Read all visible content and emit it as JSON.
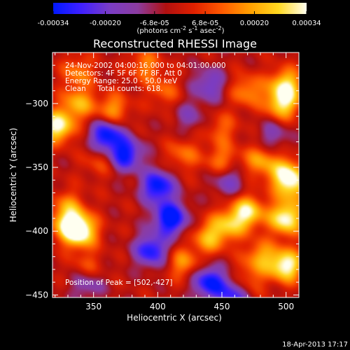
{
  "colorbar": {
    "ticks": [
      "-0.00034",
      "-0.00020",
      "-6.8e-05",
      "6.8e-05",
      "0.00020",
      "0.00034"
    ],
    "tick_values": [
      -0.00034,
      -0.0002,
      -6.8e-05,
      6.8e-05,
      0.0002,
      0.00034
    ],
    "range": [
      -0.00034,
      0.00034
    ],
    "colors": [
      "#0018ff",
      "#4020ff",
      "#7a3cc6",
      "#8c3ca0",
      "#b01010",
      "#e02000",
      "#ff5a00",
      "#ffa000",
      "#ffd820",
      "#fffff0"
    ]
  },
  "units": {
    "prefix": "(photons cm",
    "exp1": "-2",
    "mid": " s",
    "exp2": "-1",
    "mid2": " asec",
    "exp3": "-2",
    "suffix": ")"
  },
  "title": "Reconstructed RHESSI Image",
  "info": {
    "line1": "24-Nov-2002 04:00:16.000 to 04:01:00.000",
    "line2": "Detectors: 4F 5F 6F 7F 8F, Att 0",
    "line3": "Energy Range: 25.0 - 50.0 keV",
    "line4": "Clean     Total counts: 618."
  },
  "peak_label": "Position of Peak = [502,-427]",
  "footer_date": "18-Apr-2013 17:17",
  "chart_data": {
    "type": "heatmap",
    "title": "Reconstructed RHESSI Image",
    "xlabel": "Heliocentric X (arcsec)",
    "ylabel": "Heliocentric Y (arcsec)",
    "xlim": [
      318,
      510
    ],
    "ylim": [
      -452,
      -260
    ],
    "x_ticks": [
      350,
      400,
      450,
      500
    ],
    "y_ticks": [
      -300,
      -350,
      -400,
      -450
    ],
    "x_tick_labels": [
      "350",
      "400",
      "450",
      "500"
    ],
    "y_tick_labels": [
      "−300",
      "−350",
      "−400",
      "−450"
    ],
    "peak": [
      502,
      -427
    ],
    "features": [
      {
        "x": 340,
        "y": -400,
        "v": 1.0
      },
      {
        "x": 330,
        "y": -395,
        "v": 0.7
      },
      {
        "x": 322,
        "y": -318,
        "v": 0.95
      },
      {
        "x": 338,
        "y": -300,
        "v": 0.6
      },
      {
        "x": 365,
        "y": -305,
        "v": 0.55
      },
      {
        "x": 338,
        "y": -275,
        "v": 0.45
      },
      {
        "x": 390,
        "y": -270,
        "v": 0.45
      },
      {
        "x": 405,
        "y": -290,
        "v": 0.35
      },
      {
        "x": 470,
        "y": -290,
        "v": 0.5
      },
      {
        "x": 500,
        "y": -285,
        "v": 0.75
      },
      {
        "x": 497,
        "y": -300,
        "v": 0.8
      },
      {
        "x": 450,
        "y": -320,
        "v": 0.35
      },
      {
        "x": 420,
        "y": -340,
        "v": 0.4
      },
      {
        "x": 450,
        "y": -345,
        "v": 0.45
      },
      {
        "x": 480,
        "y": -345,
        "v": 0.55
      },
      {
        "x": 500,
        "y": -355,
        "v": 0.75
      },
      {
        "x": 505,
        "y": -365,
        "v": 0.6
      },
      {
        "x": 470,
        "y": -385,
        "v": 0.85
      },
      {
        "x": 500,
        "y": -390,
        "v": 1.0
      },
      {
        "x": 455,
        "y": -395,
        "v": 0.6
      },
      {
        "x": 440,
        "y": -405,
        "v": 0.6
      },
      {
        "x": 480,
        "y": -420,
        "v": 0.55
      },
      {
        "x": 500,
        "y": -427,
        "v": 1.0
      },
      {
        "x": 470,
        "y": -440,
        "v": 0.4
      },
      {
        "x": 420,
        "y": -425,
        "v": 0.5
      },
      {
        "x": 345,
        "y": -430,
        "v": 0.4
      },
      {
        "x": 330,
        "y": -380,
        "v": 0.4
      },
      {
        "x": 355,
        "y": -345,
        "v": 0.3
      },
      {
        "x": 360,
        "y": -325,
        "v": -0.9
      },
      {
        "x": 375,
        "y": -340,
        "v": -0.85
      },
      {
        "x": 400,
        "y": -365,
        "v": -0.9
      },
      {
        "x": 410,
        "y": -390,
        "v": -1.0
      },
      {
        "x": 395,
        "y": -415,
        "v": -0.8
      },
      {
        "x": 440,
        "y": -440,
        "v": -0.85
      },
      {
        "x": 460,
        "y": -450,
        "v": -0.7
      },
      {
        "x": 345,
        "y": -440,
        "v": -0.5
      },
      {
        "x": 425,
        "y": -310,
        "v": -0.3
      },
      {
        "x": 440,
        "y": -285,
        "v": -0.5
      },
      {
        "x": 455,
        "y": -360,
        "v": -0.45
      },
      {
        "x": 490,
        "y": -325,
        "v": -0.35
      }
    ]
  }
}
